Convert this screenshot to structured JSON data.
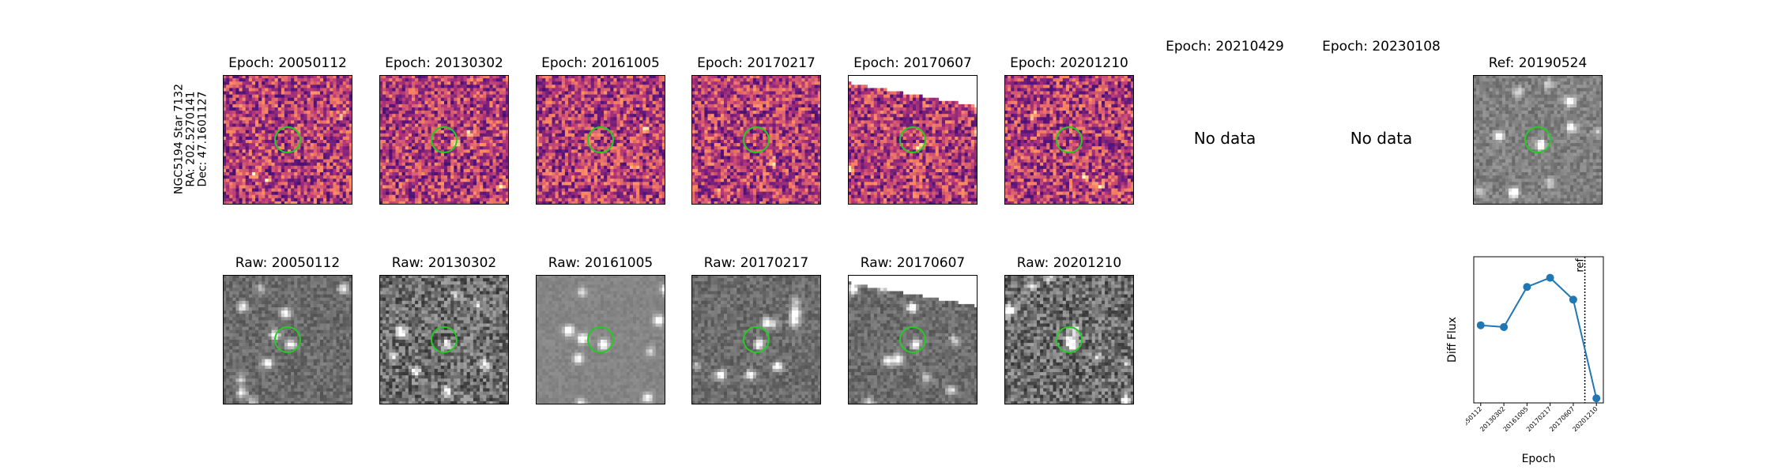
{
  "target": {
    "label_line1": "NGC5194 Star 7132",
    "label_line2": "RA: 202.5270141",
    "label_line3": "Dec: 47.1601127"
  },
  "panels": {
    "diff_titles": [
      "Epoch: 20050112",
      "Epoch: 20130302",
      "Epoch: 20161005",
      "Epoch: 20170217",
      "Epoch: 20170607",
      "Epoch: 20201210",
      "Epoch: 20210429",
      "Epoch: 20230108"
    ],
    "raw_titles": [
      "Raw: 20050112",
      "Raw: 20130302",
      "Raw: 20161005",
      "Raw: 20170217",
      "Raw: 20170607",
      "Raw: 20201210"
    ],
    "ref_title": "Ref: 20190524",
    "no_data_text": "No data",
    "circle_color": "#22cc22",
    "diff_cmap": "magma",
    "raw_cmap": "gray"
  },
  "chart_data": {
    "type": "line",
    "x": [
      "20050112",
      "20130302",
      "20161005",
      "20170217",
      "20170607",
      "20201210"
    ],
    "values": [
      0.2,
      0.18,
      0.62,
      0.72,
      0.48,
      -0.6
    ],
    "ylabel": "Diff Flux",
    "xlabel": "Epoch",
    "ylim": [
      -0.65,
      0.95
    ],
    "ref_line_label": "ref",
    "ref_line_position": 4.5,
    "color": "#1f77b4",
    "grid": false
  }
}
